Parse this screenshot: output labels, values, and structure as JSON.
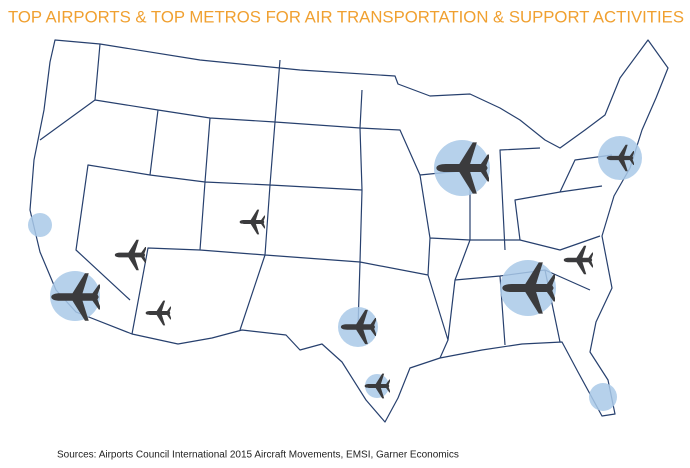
{
  "header": {
    "title": "TOP AIRPORTS & TOP METROS FOR AIR TRANSPORTATION & SUPPORT ACTIVITIES"
  },
  "footer": {
    "sources": "Sources:  Airports Council International 2015 Aircraft Movements, EMSI, Garner Economics"
  }
}
